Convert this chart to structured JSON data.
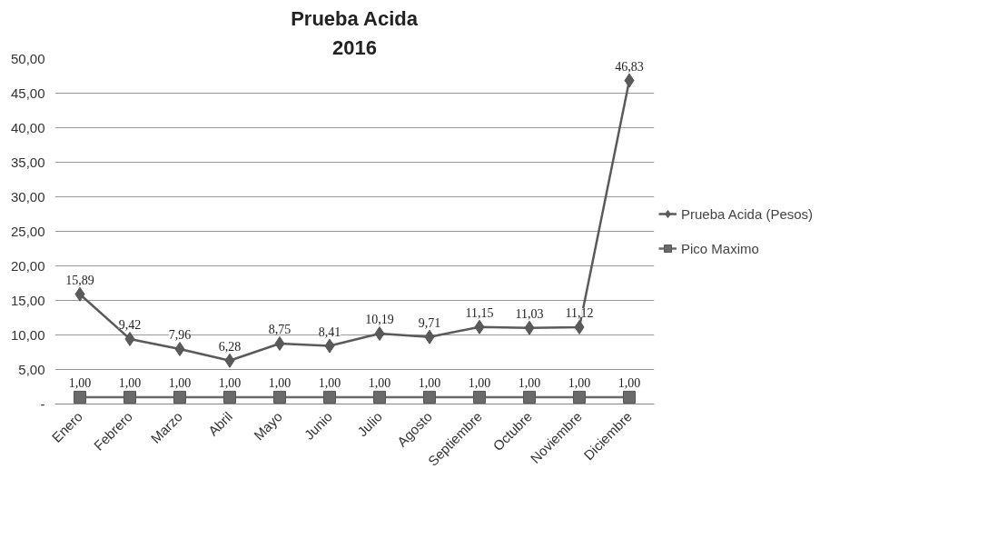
{
  "chart_data": {
    "type": "line",
    "title": "Prueba Acida",
    "subtitle": "2016",
    "categories": [
      "Enero",
      "Febrero",
      "Marzo",
      "Abril",
      "Mayo",
      "Junio",
      "Julio",
      "Agosto",
      "Septiembre",
      "Octubre",
      "Noviembre",
      "Diciembre"
    ],
    "series": [
      {
        "name": "Prueba Acida (Pesos)",
        "color": "#5a5a5a",
        "marker": "diamond",
        "values": [
          15.89,
          9.42,
          7.96,
          6.28,
          8.75,
          8.41,
          10.19,
          9.71,
          11.15,
          11.03,
          11.12,
          46.83
        ],
        "value_labels": [
          "15,89",
          "9,42",
          "7,96",
          "6,28",
          "8,75",
          "8,41",
          "10,19",
          "9,71",
          "11,15",
          "11,03",
          "11,12",
          "46,83"
        ]
      },
      {
        "name": "Pico Maximo",
        "color": "#6a6a6a",
        "marker": "square",
        "values": [
          1,
          1,
          1,
          1,
          1,
          1,
          1,
          1,
          1,
          1,
          1,
          1
        ],
        "value_labels": [
          "1,00",
          "1,00",
          "1,00",
          "1,00",
          "1,00",
          "1,00",
          "1,00",
          "1,00",
          "1,00",
          "1,00",
          "1,00",
          "1,00"
        ]
      }
    ],
    "ylim": [
      0,
      50
    ],
    "yticks": [
      {
        "value": 0,
        "label": "-"
      },
      {
        "value": 5,
        "label": "5,00"
      },
      {
        "value": 10,
        "label": "10,00"
      },
      {
        "value": 15,
        "label": "15,00"
      },
      {
        "value": 20,
        "label": "20,00"
      },
      {
        "value": 25,
        "label": "25,00"
      },
      {
        "value": 30,
        "label": "30,00"
      },
      {
        "value": 35,
        "label": "35,00"
      },
      {
        "value": 40,
        "label": "40,00"
      },
      {
        "value": 45,
        "label": "45,00"
      },
      {
        "value": 50,
        "label": "50,00"
      }
    ],
    "grid": "y",
    "legend": "right"
  }
}
